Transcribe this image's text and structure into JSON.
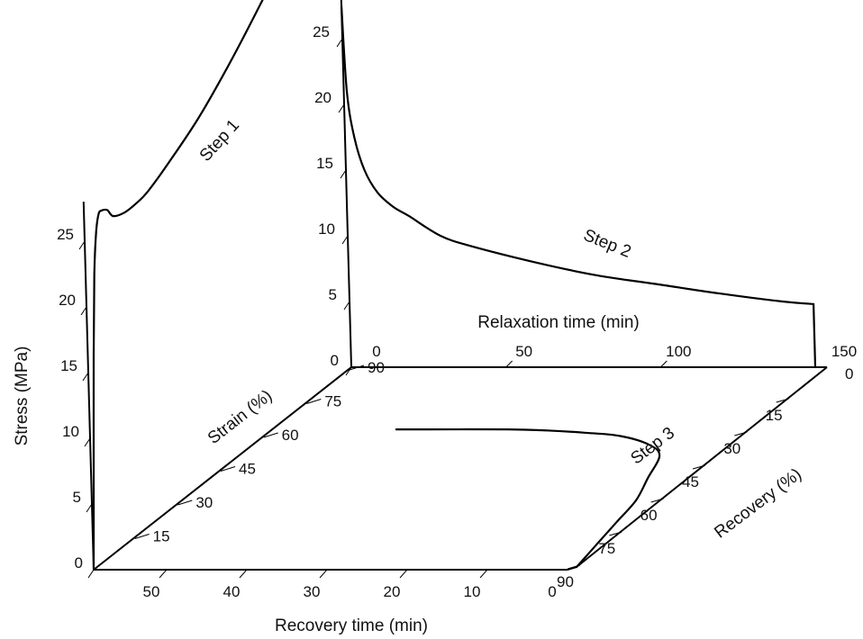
{
  "chart_data": {
    "type": "line",
    "title": "",
    "axes": {
      "stress": {
        "label": "Stress (MPa)",
        "ticks": [
          0,
          5,
          10,
          15,
          20,
          25
        ]
      },
      "strain": {
        "label": "Strain (%)",
        "ticks": [
          15,
          30,
          45,
          60,
          75,
          90
        ]
      },
      "relaxation_time": {
        "label": "Relaxation time (min)",
        "ticks": [
          0,
          50,
          100,
          150
        ]
      },
      "recovery_time": {
        "label": "Recovery time (min)",
        "ticks": [
          50,
          40,
          30,
          20,
          10,
          0
        ]
      },
      "recovery": {
        "label": "Recovery (%)",
        "ticks": [
          0,
          15,
          30,
          45,
          60,
          75,
          90
        ]
      }
    },
    "series": [
      {
        "name": "Step 1",
        "x_axis": "Strain (%)",
        "y_axis": "Stress (MPa)",
        "x": [
          0,
          1,
          2,
          3,
          4,
          5,
          6,
          8,
          10,
          14,
          18,
          22,
          30,
          40,
          50,
          60,
          70,
          80,
          90
        ],
        "y": [
          0,
          8,
          16,
          22,
          25,
          26.2,
          26.3,
          26,
          25.2,
          24.8,
          24.8,
          25,
          26,
          27.5,
          29.5,
          31.8,
          34.3,
          37,
          40
        ]
      },
      {
        "name": "Step 2",
        "x_axis": "Relaxation time (min)",
        "y_axis": "Stress (MPa)",
        "x": [
          0,
          1,
          3,
          6,
          10,
          15,
          20,
          30,
          40,
          60,
          80,
          100,
          120,
          140,
          150
        ],
        "y": [
          27.5,
          21,
          17.5,
          15,
          13.3,
          12.2,
          11.5,
          10,
          9.2,
          8,
          7,
          6.3,
          5.6,
          5,
          4.8
        ]
      },
      {
        "name": "Step 3",
        "x_axis": "Recovery time (min)",
        "y_axis": "Recovery (%)",
        "x": [
          0,
          1,
          2,
          3,
          5,
          7,
          10,
          15,
          20,
          25,
          30,
          40,
          44
        ],
        "y": [
          90,
          80,
          70,
          60,
          50,
          40,
          35,
          31,
          29.5,
          28.5,
          28,
          28,
          28
        ]
      }
    ]
  }
}
